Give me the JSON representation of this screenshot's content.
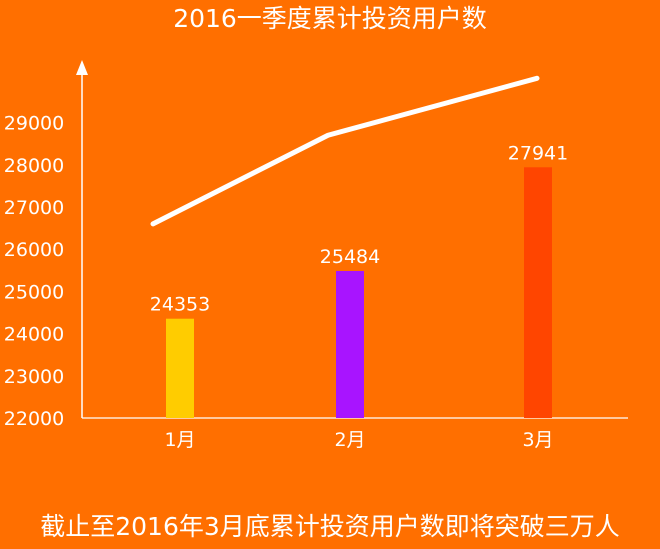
{
  "chart_data": {
    "type": "bar",
    "title": "2016一季度累计投资用户数",
    "caption": "截止至2016年3月底累计投资用户数即将突破三万人",
    "categories": [
      "1月",
      "2月",
      "3月"
    ],
    "values": [
      24353,
      25484,
      27941
    ],
    "value_labels": [
      "24353",
      "25484",
      "27941"
    ],
    "bar_colors": [
      "#FFCC00",
      "#A814FF",
      "#FF4500"
    ],
    "trend_line": [
      26600,
      28700,
      30050
    ],
    "trend_color": "#FFFFFF",
    "yticks": [
      "22000",
      "23000",
      "24000",
      "25000",
      "26000",
      "27000",
      "28000",
      "29000"
    ],
    "ylim": [
      22000,
      30500
    ],
    "xlabel": "",
    "ylabel": "",
    "grid": false,
    "background": "#FF6F00"
  }
}
